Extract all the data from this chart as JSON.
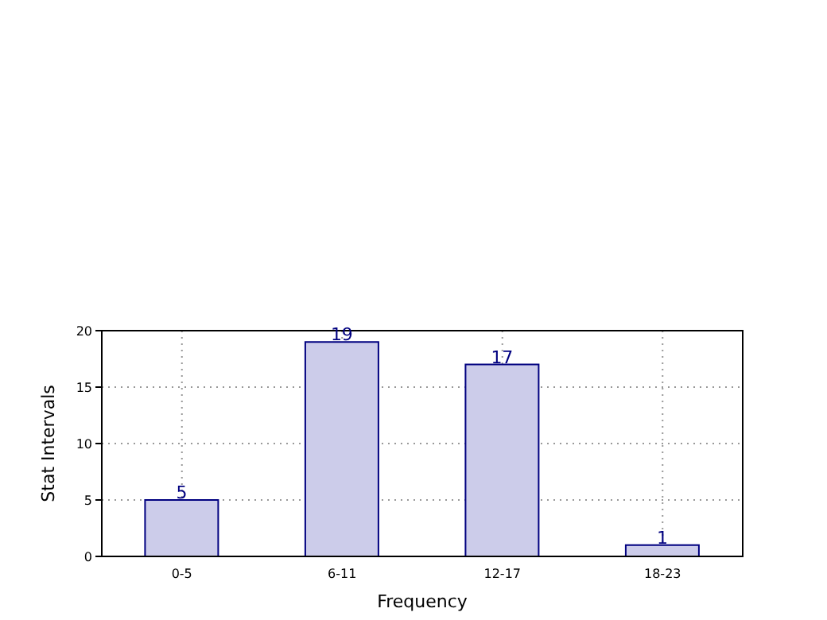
{
  "chart_data": {
    "type": "bar",
    "xlabel": "Frequency",
    "ylabel": "Stat Intervals",
    "categories": [
      "0-5",
      "6-11",
      "12-17",
      "18-23"
    ],
    "values": [
      5,
      19,
      17,
      1
    ],
    "color": "#ccccea",
    "data_labels": true,
    "ylim": [
      0,
      20
    ],
    "yticks": [
      0,
      5,
      10,
      15,
      20
    ],
    "grid": true
  }
}
